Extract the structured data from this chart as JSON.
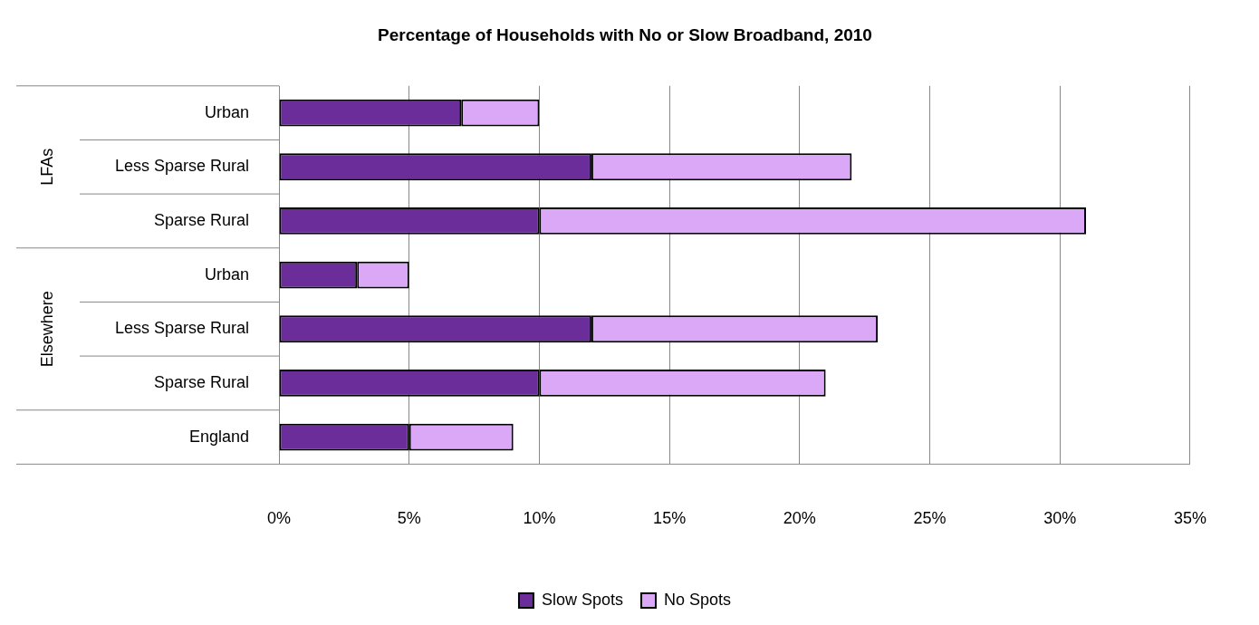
{
  "chart_data": {
    "type": "bar",
    "orientation": "horizontal",
    "stacked": true,
    "title": "Percentage of Households with No or Slow Broadband, 2010",
    "categories": [
      "Urban",
      "Less Sparse Rural",
      "Sparse Rural",
      "Urban",
      "Less Sparse Rural",
      "Sparse Rural",
      "England"
    ],
    "series": [
      {
        "name": "Slow Spots",
        "color": "#6b2d9a",
        "values": [
          7,
          12,
          10,
          3,
          12,
          10,
          5
        ]
      },
      {
        "name": "No Spots",
        "color": "#dba8f7",
        "values": [
          3,
          10,
          21,
          2,
          11,
          11,
          4
        ]
      }
    ],
    "annotations": [
      "LFAs",
      "Elsewhere"
    ],
    "xlim": [
      0,
      35
    ],
    "xticks": [
      {
        "value": 0,
        "label": "0%"
      },
      {
        "value": 5,
        "label": "5%"
      },
      {
        "value": 10,
        "label": "10%"
      },
      {
        "value": 15,
        "label": "15%"
      },
      {
        "value": 20,
        "label": "20%"
      },
      {
        "value": 25,
        "label": "25%"
      },
      {
        "value": 30,
        "label": "30%"
      },
      {
        "value": 35,
        "label": "35%"
      }
    ],
    "grid": "x",
    "legend": "bottom"
  }
}
